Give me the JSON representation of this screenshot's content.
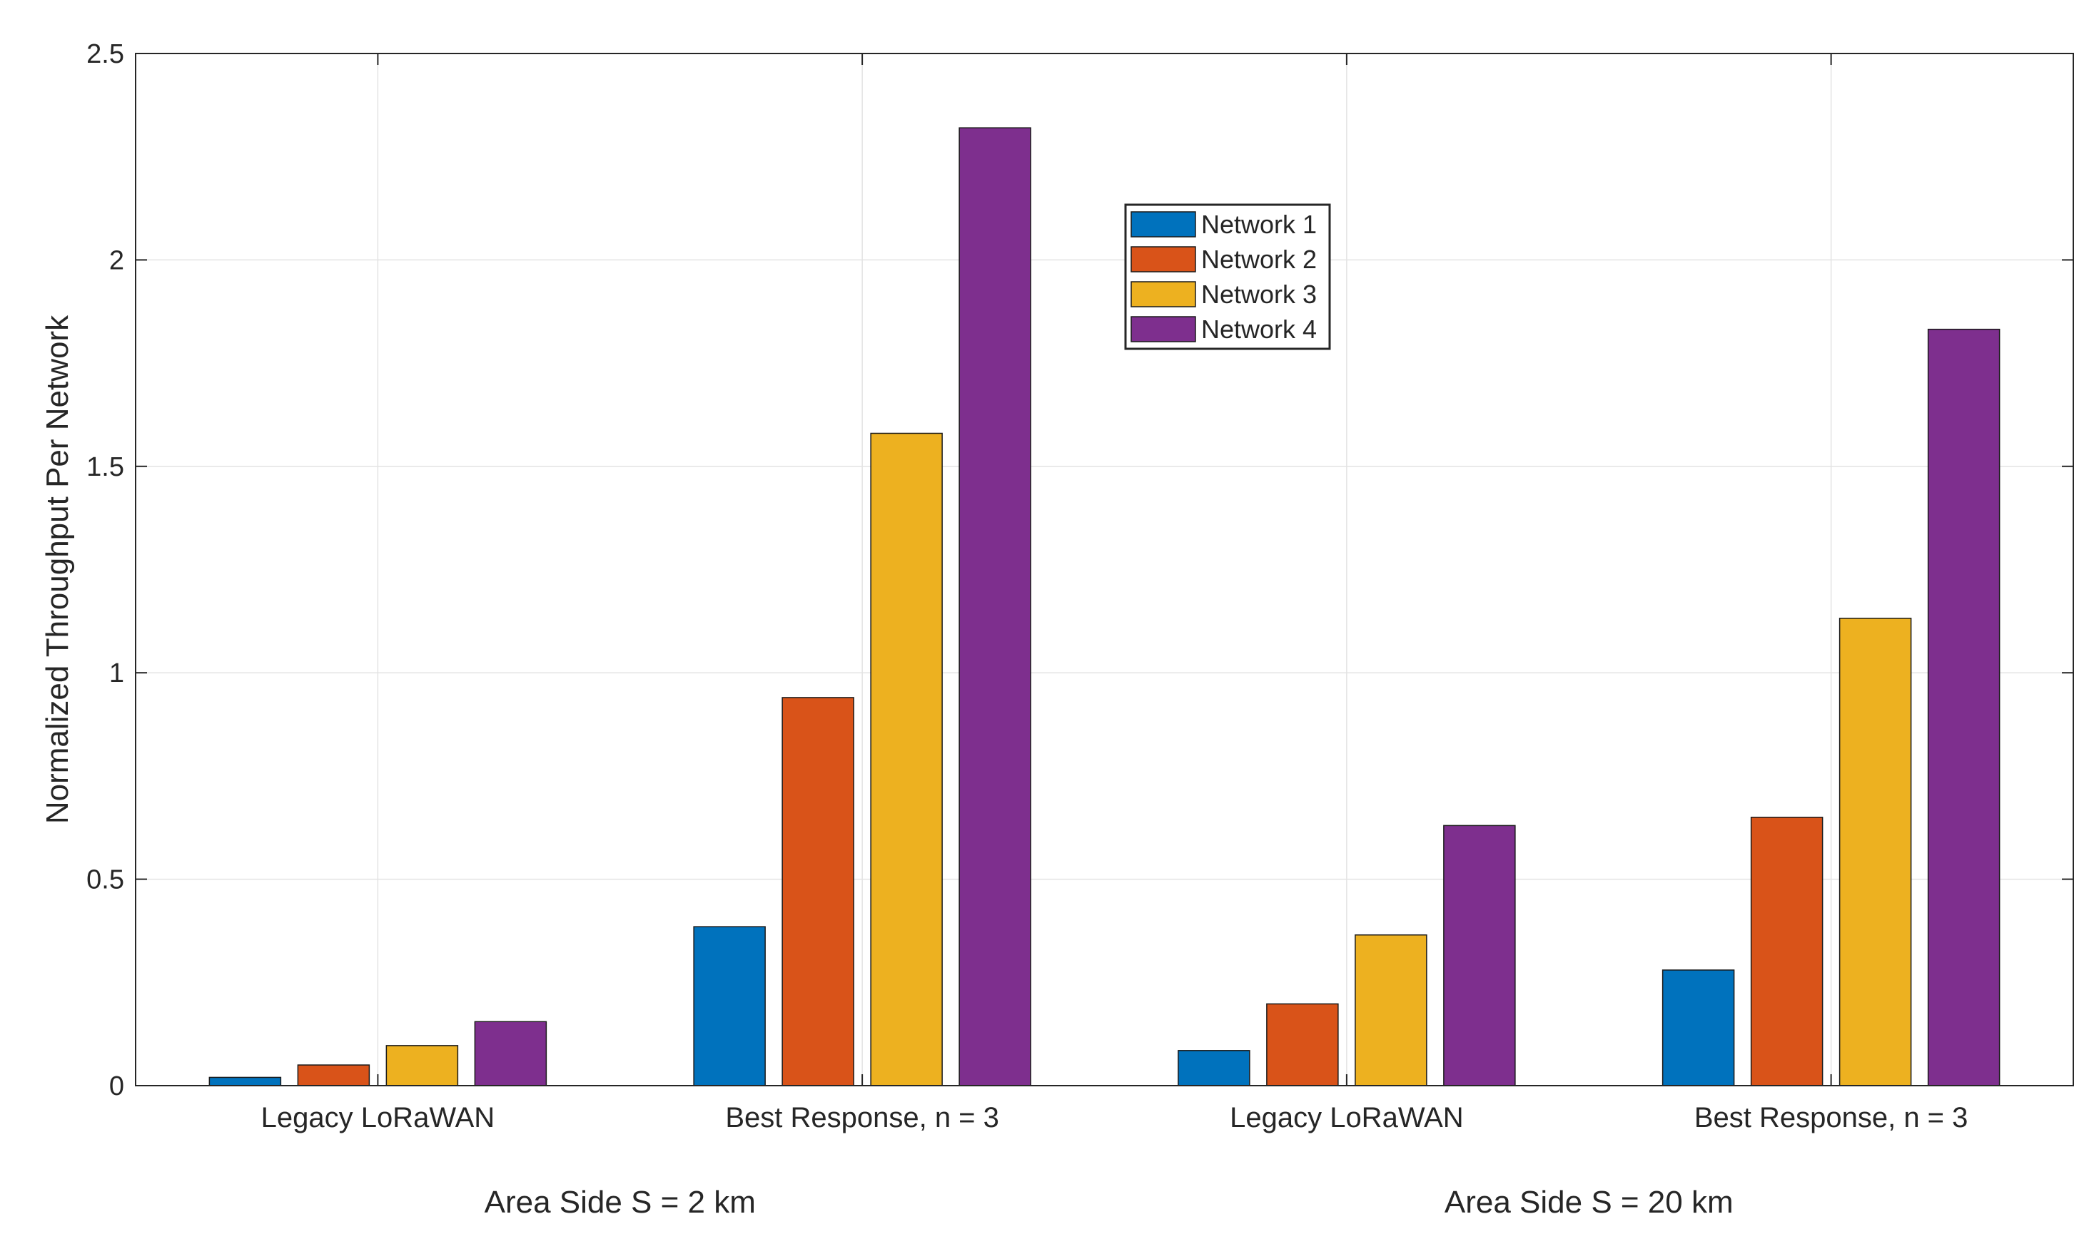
{
  "chart_data": {
    "type": "bar",
    "title": "",
    "xlabel": "",
    "ylabel": "Normalized Throughput Per Network",
    "ylim": [
      0,
      2.5
    ],
    "yticks": [
      "0",
      "0.5",
      "1",
      "1.5",
      "2",
      "2.5"
    ],
    "grid": true,
    "legend_position": "top-center",
    "categories": [
      "Legacy LoRaWAN",
      "Best Response, n = 3",
      "Legacy LoRaWAN",
      "Best Response, n = 3"
    ],
    "group_labels": [
      "Area Side S = 2 km",
      "Area Side S = 20 km"
    ],
    "series": [
      {
        "name": "Network 1",
        "color": "#0072BD",
        "values": [
          0.02,
          0.385,
          0.085,
          0.28
        ]
      },
      {
        "name": "Network 2",
        "color": "#D95319",
        "values": [
          0.05,
          0.94,
          0.198,
          0.65
        ]
      },
      {
        "name": "Network 3",
        "color": "#EDB120",
        "values": [
          0.097,
          1.58,
          0.365,
          1.132
        ]
      },
      {
        "name": "Network 4",
        "color": "#7E2F8E",
        "values": [
          0.155,
          2.32,
          0.63,
          1.832
        ]
      }
    ]
  }
}
